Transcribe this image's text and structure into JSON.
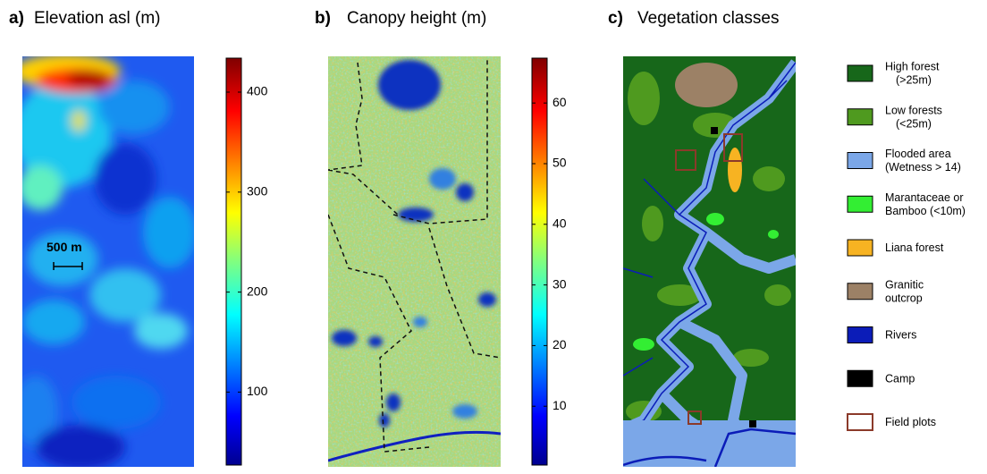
{
  "panels": [
    {
      "label": "a)",
      "title": "Elevation asl (m)",
      "scale_bar": "500 m",
      "colorbar": {
        "lim": [
          27,
          434
        ],
        "ticks": [
          100,
          200,
          300,
          400
        ]
      }
    },
    {
      "label": "b)",
      "title": "Canopy height (m)",
      "colorbar": {
        "lim": [
          0.3,
          67.4
        ],
        "ticks": [
          10,
          20,
          30,
          40,
          50,
          60
        ]
      }
    },
    {
      "label": "c)",
      "title": "Vegetation classes",
      "legend": [
        {
          "label": [
            "High forest",
            "(>25m)"
          ],
          "color": "#17671a"
        },
        {
          "label": [
            "Low forests",
            "(<25m)"
          ],
          "color": "#4f9a1f"
        },
        {
          "label": [
            "Flooded area",
            "(Wetness > 14)"
          ],
          "color": "#7ba7e8"
        },
        {
          "label": [
            "Marantaceae or",
            "Bamboo (<10m)"
          ],
          "color": "#33ee33"
        },
        {
          "label": [
            "Liana forest"
          ],
          "color": "#f7b322"
        },
        {
          "label": [
            "Granitic",
            "outcrop"
          ],
          "color": "#9c8166"
        },
        {
          "label": [
            "Rivers"
          ],
          "color": "#0b1cb8"
        },
        {
          "label": [
            "Camp"
          ],
          "color": "#000000"
        },
        {
          "label": [
            "Field plots"
          ],
          "color": "#ffffff",
          "border": "#8b3a2a"
        }
      ]
    }
  ]
}
